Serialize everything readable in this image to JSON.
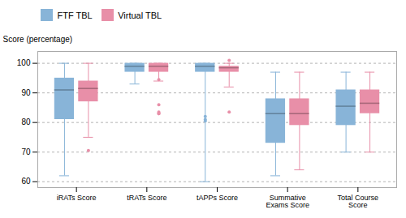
{
  "chart_data": {
    "type": "box",
    "categories": [
      "iRATs Score",
      "tRATs Score",
      "tAPPs Score",
      "Summative Exams Score",
      "Total Course Score"
    ],
    "ylabel": "Score (percentage)",
    "ylim": [
      58,
      104
    ],
    "yticks": [
      60,
      70,
      80,
      90,
      100
    ],
    "grid": true,
    "legend": "top",
    "series": [
      {
        "name": "FTF TBL",
        "color": "#88b4d8",
        "whislo": [
          62,
          93,
          60,
          62,
          70
        ],
        "q1": [
          81,
          97,
          97,
          73,
          79
        ],
        "med": [
          91,
          99,
          99,
          83,
          85.5
        ],
        "q3": [
          95,
          100,
          100,
          88,
          91
        ],
        "whishi": [
          100,
          100,
          100,
          97,
          97
        ],
        "outliers": [
          {
            "category": "tAPPs Score",
            "value": 82
          },
          {
            "category": "tAPPs Score",
            "value": 81
          },
          {
            "category": "tAPPs Score",
            "value": 80.5
          }
        ]
      },
      {
        "name": "Virtual TBL",
        "color": "#e88fa8",
        "whislo": [
          75,
          94,
          92,
          64,
          70
        ],
        "q1": [
          87,
          97,
          97,
          79,
          83
        ],
        "med": [
          91.5,
          99,
          98.5,
          83,
          86.5
        ],
        "q3": [
          94,
          100,
          99,
          88,
          91
        ],
        "whishi": [
          100,
          100,
          100,
          97,
          97
        ],
        "outliers": [
          {
            "category": "iRATs Score",
            "value": 70.5
          },
          {
            "category": "tRATs Score",
            "value": 86
          },
          {
            "category": "tRATs Score",
            "value": 83.5
          },
          {
            "category": "tRATs Score",
            "value": 83
          },
          {
            "category": "tRATs Score",
            "value": 83
          },
          {
            "category": "tRATs Score",
            "value": 94.5
          },
          {
            "category": "tAPPs Score",
            "value": 83.5
          },
          {
            "category": "tAPPs Score",
            "value": 101
          }
        ]
      }
    ]
  }
}
